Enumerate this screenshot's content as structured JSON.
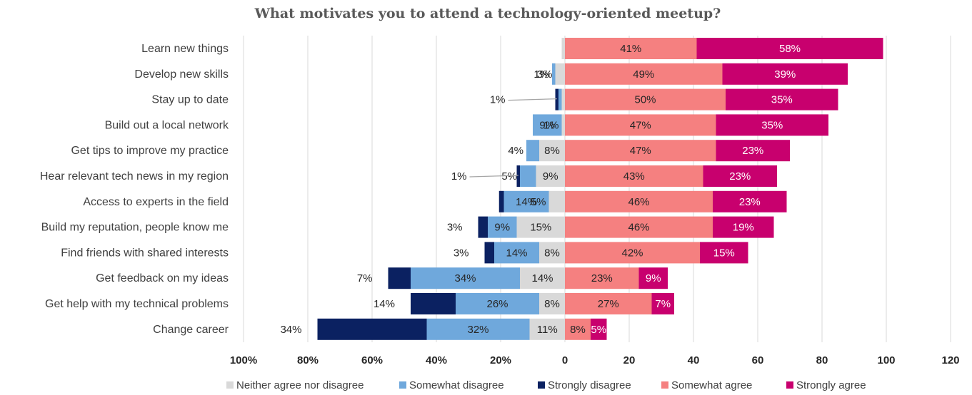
{
  "chart_data": {
    "type": "bar",
    "orientation": "horizontal-diverging-stacked",
    "title": "What motivates you to attend a technology-oriented meetup?",
    "categories": [
      "Learn new things",
      "Develop new skills",
      "Stay up to date",
      "Build out a local network",
      "Get tips to improve my practice",
      "Hear relevant tech news in my region",
      "Access to experts in the field",
      "Build my reputation, people know me",
      "Find friends with shared interests",
      "Get feedback on my ideas",
      "Get help with my technical problems",
      "Change career"
    ],
    "series": [
      {
        "name": "Neither agree nor disagree",
        "color": "#d9d9d9",
        "side": "left",
        "values": [
          1,
          3,
          1,
          1,
          8,
          9,
          5,
          15,
          8,
          14,
          8,
          11
        ],
        "labels": [
          "",
          "3%",
          "",
          "1%",
          "8%",
          "9%",
          "5%",
          "15%",
          "8%",
          "14%",
          "8%",
          "11%"
        ]
      },
      {
        "name": "Somewhat disagree",
        "color": "#6fa8dc",
        "side": "left",
        "values": [
          0,
          1,
          1,
          9,
          4,
          5,
          14,
          9,
          14,
          34,
          26,
          32
        ],
        "labels": [
          "",
          "1%",
          "",
          "9%",
          "4%",
          "5%",
          "14%",
          "9%",
          "14%",
          "34%",
          "26%",
          "32%"
        ]
      },
      {
        "name": "Strongly disagree",
        "color": "#0b2161",
        "side": "left",
        "values": [
          0,
          0,
          1,
          0,
          0,
          1,
          1.5,
          3,
          3,
          7,
          14,
          34
        ],
        "labels": [
          "",
          "",
          "1%",
          "",
          "",
          "1%",
          "",
          "3%",
          "3%",
          "7%",
          "14%",
          "34%"
        ]
      },
      {
        "name": "Somewhat agree",
        "color": "#f58080",
        "side": "right",
        "values": [
          41,
          49,
          50,
          47,
          47,
          43,
          46,
          46,
          42,
          23,
          27,
          8
        ],
        "labels": [
          "41%",
          "49%",
          "50%",
          "47%",
          "47%",
          "43%",
          "46%",
          "46%",
          "42%",
          "23%",
          "27%",
          "8%"
        ]
      },
      {
        "name": "Strongly agree",
        "color": "#c8006e",
        "side": "right",
        "values": [
          58,
          39,
          35,
          35,
          23,
          23,
          23,
          19,
          15,
          9,
          7,
          5
        ],
        "labels": [
          "58%",
          "39%",
          "35%",
          "35%",
          "23%",
          "23%",
          "23%",
          "19%",
          "15%",
          "9%",
          "7%",
          "5%"
        ]
      }
    ],
    "x_ticks_left": [
      "100%",
      "80%",
      "60%",
      "40%",
      "20%"
    ],
    "x_ticks_right": [
      "0",
      "20",
      "40",
      "60",
      "80",
      "100",
      "120"
    ],
    "xlim": [
      -100,
      120
    ],
    "grid": true,
    "legend": "bottom"
  }
}
